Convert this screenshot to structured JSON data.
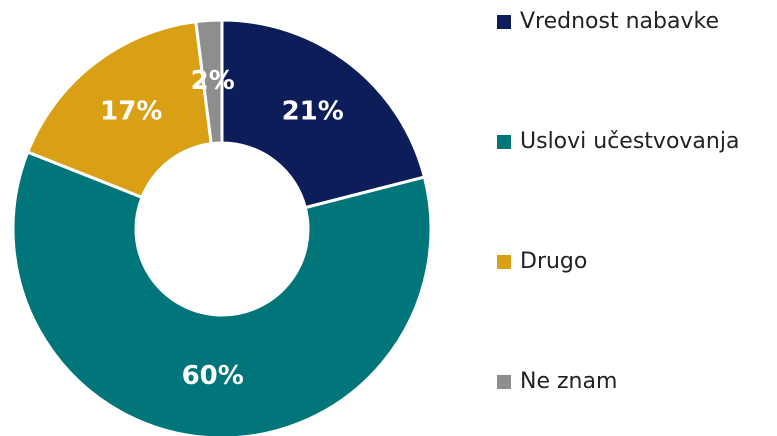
{
  "chart_data": {
    "type": "donut",
    "categories": [
      "Vrednost nabavke",
      "Uslovi učestvovanja",
      "Drugo",
      "Ne znam"
    ],
    "values": [
      21,
      60,
      17,
      2
    ],
    "value_labels": [
      "21%",
      "60%",
      "17%",
      "2%"
    ],
    "colors": [
      "#0c1d5a",
      "#00757a",
      "#d9a016",
      "#8e8e8e"
    ],
    "legend": "right"
  }
}
